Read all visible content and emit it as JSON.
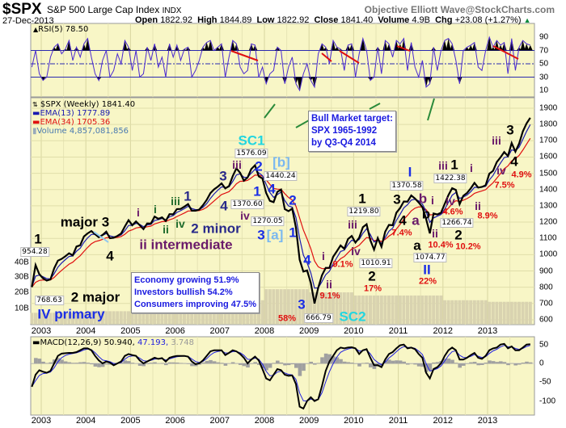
{
  "header": {
    "symbol": "$SPX",
    "name": "S&P 500 Large Cap Index",
    "exchange": "INDX",
    "brand": "Objective Elliott Wave@StockCharts.com",
    "date": "27-Dec-2013",
    "open_label": "Open",
    "open": "1822.92",
    "high_label": "High",
    "high": "1844.89",
    "low_label": "Low",
    "low": "1822.92",
    "close_label": "Close",
    "close": "1841.40",
    "volume_label": "Volume",
    "volume": "4.9B",
    "chg_label": "Chg",
    "chg": "+23.08 (+1.27%)",
    "chg_icon": "▲"
  },
  "legend": {
    "rsi": "RSI(5) 78.50",
    "price": "$SPX (Weekly) 1841.40",
    "ema13": "EMA(13) 1777.89",
    "ema34": "EMA(34) 1705.36",
    "volume": "Volume 4,857,081,856",
    "macd_name": "MACD(12,26,9)",
    "macd": "50.940,",
    "signal": "47.193,",
    "hist": "3.748"
  },
  "info_box": {
    "line1": "Economy growing 51.9%",
    "line2": "Investors bullish 54.2%",
    "line3": "Consumers improving 47.5%"
  },
  "target_box": {
    "line1": "Bull Market target:",
    "line2": "SPX 1965-1992",
    "line3": "by Q3-Q4 2014"
  },
  "colors": {
    "bg": "#f8f6c6",
    "ema13": "#1a1ab0",
    "ema34": "#e01010",
    "rsi": "#4a2ad0",
    "macd": "#000000",
    "signal": "#2020e0",
    "hist": "#a0a0a0"
  },
  "annotations": [
    "1",
    "954.28",
    "major 3",
    "4",
    "i",
    "i",
    "iii",
    "1",
    "iv",
    "ii",
    "ii intermediate",
    "2 minor",
    "3",
    "4",
    "1370.60",
    "iii",
    "iv",
    "SC1",
    "1576.09",
    "2",
    "[b]",
    "1440.24",
    "1",
    "4",
    "1270.05",
    "3",
    "[a]",
    "2 major",
    "IV primary",
    "768.63",
    "2",
    "1",
    "4",
    "3",
    "58%",
    "666.79",
    "SC2",
    "i",
    "ii",
    "9.1%",
    "1219.80",
    "1",
    "iii",
    "iv",
    "9.1%",
    "1010.91",
    "2",
    "17%",
    "3",
    "1370.58",
    "I",
    "b",
    "4",
    "7.4%",
    "a",
    "b",
    "i",
    "a",
    "ii",
    "10.4%",
    "1074.77",
    "II",
    "22%",
    "iii",
    "1",
    "1422.38",
    "iv",
    "4.6%",
    "1266.74",
    "2",
    "10.2%",
    "i",
    "ii",
    "8.9%",
    "iii",
    "3",
    "4",
    "iv",
    "4.9%",
    "7.5%"
  ],
  "chart_data": {
    "type": "line",
    "title": "$SPX S&P 500 Large Cap Index (Weekly)",
    "start": "2002-10",
    "frequency": "approx. monthly",
    "x_ticks": [
      "2003",
      "2004",
      "2005",
      "2006",
      "2007",
      "2008",
      "2009",
      "2010",
      "2011",
      "2012",
      "2013"
    ],
    "price_axis": {
      "ylim": [
        600,
        1900
      ],
      "ticks": [
        1900,
        1800,
        1700,
        1600,
        1500,
        1400,
        1300,
        1200,
        1100,
        1000,
        900,
        800,
        700,
        600
      ]
    },
    "volume_axis": {
      "ticks": [
        "40B",
        "30B",
        "20B",
        "10B"
      ]
    },
    "price": [
      800,
      936,
      880,
      855,
      841,
      848,
      916,
      963,
      974,
      990,
      1008,
      996,
      1050,
      1058,
      1112,
      1131,
      1145,
      1126,
      1107,
      1121,
      1141,
      1101,
      1104,
      1115,
      1130,
      1173,
      1212,
      1181,
      1204,
      1181,
      1157,
      1192,
      1191,
      1234,
      1220,
      1229,
      1207,
      1249,
      1248,
      1280,
      1281,
      1295,
      1311,
      1270,
      1270,
      1277,
      1304,
      1336,
      1378,
      1401,
      1418,
      1438,
      1407,
      1421,
      1482,
      1531,
      1503,
      1455,
      1474,
      1527,
      1549,
      1481,
      1468,
      1379,
      1331,
      1323,
      1386,
      1400,
      1280,
      1267,
      1283,
      1166,
      969,
      896,
      903,
      826,
      700,
      798,
      873,
      919,
      919,
      987,
      1021,
      1057,
      1036,
      1096,
      1115,
      1074,
      1104,
      1169,
      1187,
      1089,
      1031,
      1102,
      1049,
      1141,
      1183,
      1181,
      1258,
      1286,
      1327,
      1326,
      1364,
      1345,
      1321,
      1292,
      1219,
      1131,
      1253,
      1247,
      1258,
      1312,
      1366,
      1408,
      1398,
      1310,
      1362,
      1379,
      1407,
      1441,
      1412,
      1416,
      1426,
      1498,
      1515,
      1569,
      1598,
      1631,
      1606,
      1686,
      1633,
      1682,
      1757,
      1806,
      1841
    ],
    "volume_billions_by_year": [
      7,
      7,
      8,
      9,
      10,
      15,
      22,
      20,
      18,
      18,
      15,
      14
    ],
    "rsi": {
      "axis": [
        90,
        70,
        50,
        30,
        10
      ],
      "values": [
        45,
        70,
        35,
        25,
        30,
        60,
        75,
        80,
        65,
        72,
        85,
        55,
        75,
        60,
        80,
        88,
        60,
        35,
        25,
        55,
        70,
        30,
        40,
        65,
        50,
        85,
        75,
        40,
        70,
        30,
        35,
        75,
        55,
        80,
        45,
        60,
        30,
        80,
        60,
        78,
        55,
        72,
        75,
        30,
        40,
        55,
        75,
        82,
        85,
        70,
        75,
        80,
        30,
        60,
        85,
        80,
        45,
        35,
        40,
        80,
        78,
        30,
        45,
        20,
        35,
        40,
        75,
        70,
        20,
        45,
        60,
        20,
        10,
        35,
        50,
        25,
        15,
        65,
        80,
        75,
        50,
        85,
        75,
        72,
        40,
        78,
        80,
        30,
        65,
        88,
        70,
        25,
        30,
        75,
        35,
        85,
        80,
        60,
        85,
        80,
        88,
        40,
        82,
        45,
        30,
        55,
        15,
        20,
        75,
        40,
        70,
        85,
        88,
        80,
        55,
        20,
        70,
        75,
        78,
        82,
        45,
        40,
        70,
        90,
        75,
        85,
        78,
        82,
        35,
        88,
        40,
        75,
        85,
        80,
        78
      ]
    },
    "macd": {
      "axis": [
        50,
        0,
        -50,
        -100
      ],
      "values": [
        -62,
        -30,
        -18,
        -22,
        -25,
        -20,
        0,
        20,
        26,
        27,
        28,
        28,
        30,
        35,
        40,
        40,
        35,
        20,
        8,
        0,
        5,
        2,
        -5,
        0,
        5,
        20,
        25,
        22,
        20,
        8,
        0,
        5,
        10,
        15,
        12,
        14,
        5,
        15,
        18,
        20,
        20,
        20,
        18,
        5,
        -2,
        0,
        8,
        20,
        32,
        35,
        35,
        35,
        22,
        28,
        35,
        32,
        25,
        15,
        0,
        10,
        18,
        8,
        -15,
        -40,
        -45,
        -30,
        -15,
        -18,
        -30,
        -33,
        -32,
        -55,
        -115,
        -120,
        -100,
        -90,
        -100,
        -95,
        -60,
        -20,
        5,
        20,
        35,
        42,
        40,
        42,
        43,
        40,
        25,
        35,
        38,
        15,
        -5,
        -5,
        -10,
        10,
        25,
        30,
        40,
        48,
        50,
        40,
        42,
        38,
        25,
        15,
        -25,
        -40,
        -15,
        -10,
        0,
        20,
        35,
        42,
        35,
        10,
        10,
        15,
        22,
        28,
        15,
        12,
        20,
        35,
        40,
        42,
        50,
        52,
        40,
        45,
        35,
        35,
        42,
        50,
        51
      ]
    }
  }
}
